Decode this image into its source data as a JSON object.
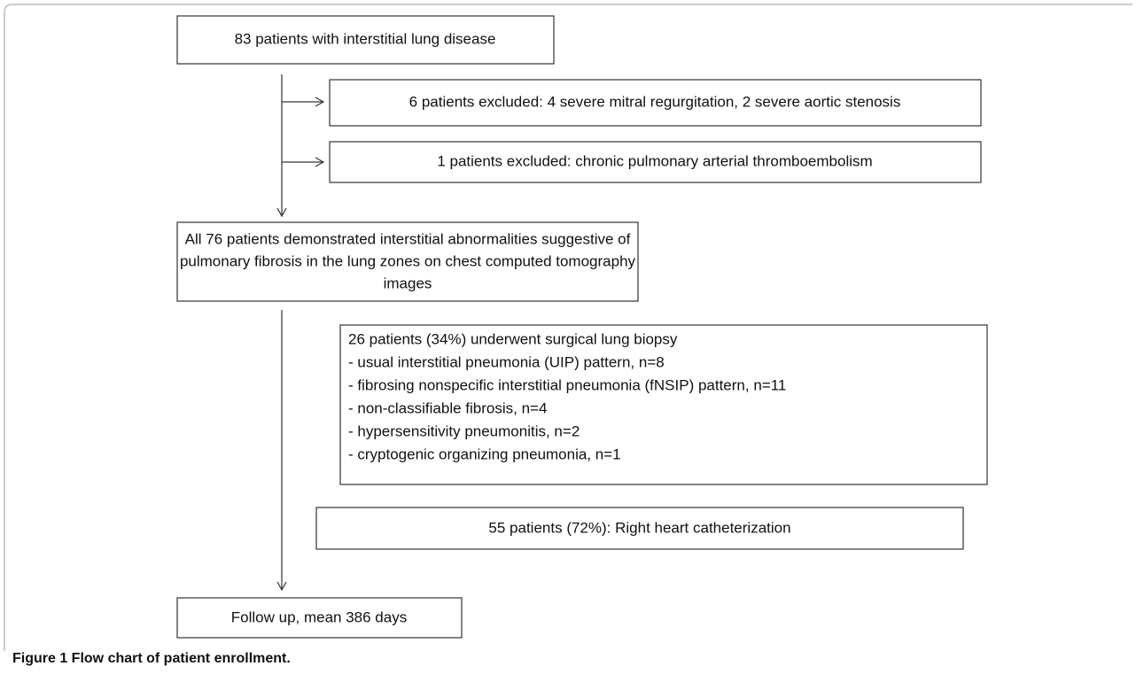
{
  "nodes": [
    {
      "lines": [
        "83 patients with interstitial lung disease"
      ]
    },
    {
      "lines": [
        "6 patients excluded: 4 severe mitral regurgitation, 2 severe aortic stenosis"
      ]
    },
    {
      "lines": [
        "1 patients excluded: chronic pulmonary arterial thromboembolism"
      ]
    },
    {
      "lines": [
        "All 76 patients demonstrated interstitial abnormalities suggestive of",
        "pulmonary fibrosis in the lung zones on chest computed tomography",
        "images"
      ]
    },
    {
      "lines": [
        "26 patients (34%) underwent surgical lung biopsy",
        "- usual interstitial pneumonia (UIP) pattern, n=8",
        "- fibrosing nonspecific interstitial pneumonia (fNSIP) pattern, n=11",
        "- non-classifiable fibrosis, n=4",
        "- hypersensitivity pneumonitis, n=2",
        "- cryptogenic organizing pneumonia, n=1"
      ]
    },
    {
      "lines": [
        "55 patients (72%): Right heart catheterization"
      ]
    },
    {
      "lines": [
        "Follow up, mean 386 days"
      ]
    }
  ],
  "caption": "Figure 1 Flow chart of patient enrollment."
}
